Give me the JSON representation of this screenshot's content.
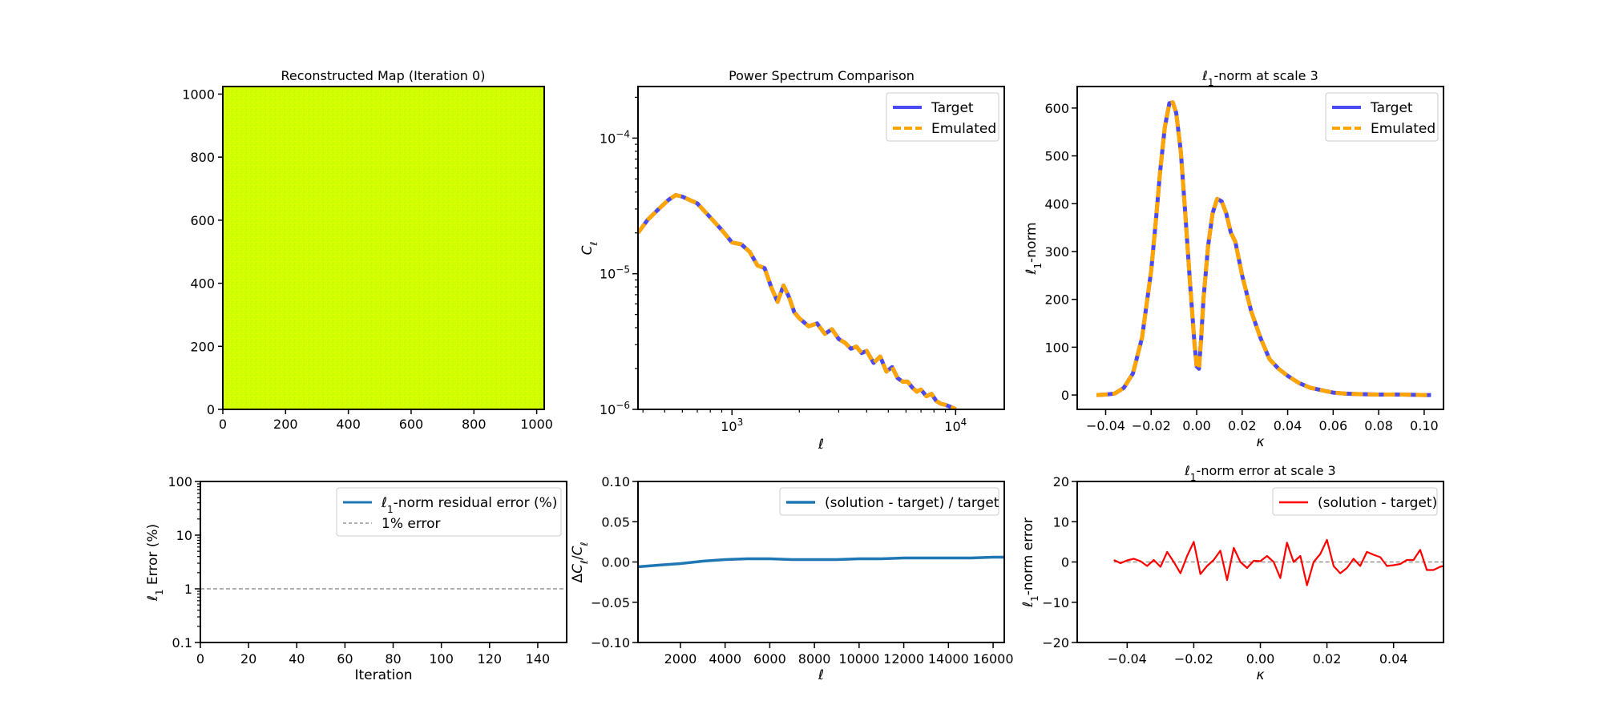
{
  "figure": {
    "map_panel": {
      "title": "Reconstructed Map (Iteration 0)",
      "x_ticks": [
        "0",
        "200",
        "400",
        "600",
        "800",
        "1000"
      ],
      "y_ticks": [
        "0",
        "200",
        "400",
        "600",
        "800",
        "1000"
      ],
      "colors": {
        "base": "#d2ff00",
        "speckle_a": "#b8f51c",
        "speckle_b": "#eeff06"
      }
    }
  },
  "chart_data": [
    {
      "type": "line",
      "title": "Power Spectrum Comparison",
      "xlabel": "ℓ",
      "ylabel": "C_ℓ",
      "xscale": "log",
      "yscale": "log",
      "xlim": [
        380,
        16500
      ],
      "ylim": [
        1e-06,
        0.00024
      ],
      "x_tick_labels": [
        {
          "v": 1000,
          "base": "10",
          "exp": "3"
        },
        {
          "v": 10000,
          "base": "10",
          "exp": "4"
        }
      ],
      "y_tick_labels": [
        {
          "v": 1e-06,
          "base": "10",
          "exp": "−6"
        },
        {
          "v": 1e-05,
          "base": "10",
          "exp": "−5"
        },
        {
          "v": 0.0001,
          "base": "10",
          "exp": "−4"
        }
      ],
      "legend": "upper right",
      "x": [
        380,
        420,
        470,
        520,
        560,
        600,
        700,
        800,
        900,
        1000,
        1100,
        1200,
        1300,
        1400,
        1500,
        1600,
        1700,
        1800,
        1900,
        2000,
        2200,
        2400,
        2600,
        2800,
        3000,
        3200,
        3400,
        3600,
        3800,
        4000,
        4300,
        4600,
        4900,
        5200,
        5500,
        5800,
        6100,
        6400,
        6700,
        7000,
        7400,
        7800,
        8200,
        8600,
        9000,
        9400,
        9800,
        10000
      ],
      "series": [
        {
          "name": "Target",
          "color": "#4a4af0",
          "style": "solid",
          "y": [
            2e-05,
            2.5e-05,
            3e-05,
            3.5e-05,
            3.8e-05,
            3.7e-05,
            3.3e-05,
            2.6e-05,
            2.1e-05,
            1.7e-05,
            1.65e-05,
            1.45e-05,
            1.15e-05,
            1.1e-05,
            7.9e-06,
            6.2e-06,
            8.2e-06,
            6.7e-06,
            5.2e-06,
            4.7e-06,
            4.1e-06,
            4.3e-06,
            3.6e-06,
            3.9e-06,
            3.3e-06,
            3.1e-06,
            2.8e-06,
            2.9e-06,
            2.6e-06,
            2.7e-06,
            2.2e-06,
            2.45e-06,
            1.9e-06,
            2.05e-06,
            1.7e-06,
            1.6e-06,
            1.6e-06,
            1.45e-06,
            1.35e-06,
            1.4e-06,
            1.25e-06,
            1.3e-06,
            1.15e-06,
            1.1e-06,
            1.08e-06,
            1.05e-06,
            1.02e-06,
            1e-06
          ]
        },
        {
          "name": "Emulated",
          "color": "#ffa500",
          "style": "dashed",
          "y": [
            2e-05,
            2.5e-05,
            3e-05,
            3.5e-05,
            3.8e-05,
            3.7e-05,
            3.3e-05,
            2.6e-05,
            2.1e-05,
            1.7e-05,
            1.65e-05,
            1.45e-05,
            1.15e-05,
            1.1e-05,
            7.9e-06,
            6.2e-06,
            8.2e-06,
            6.7e-06,
            5.2e-06,
            4.7e-06,
            4.1e-06,
            4.3e-06,
            3.6e-06,
            3.9e-06,
            3.3e-06,
            3.1e-06,
            2.8e-06,
            2.9e-06,
            2.6e-06,
            2.7e-06,
            2.2e-06,
            2.45e-06,
            1.9e-06,
            2.05e-06,
            1.7e-06,
            1.6e-06,
            1.6e-06,
            1.45e-06,
            1.35e-06,
            1.4e-06,
            1.25e-06,
            1.3e-06,
            1.15e-06,
            1.1e-06,
            1.08e-06,
            1.05e-06,
            1.02e-06,
            1e-06
          ]
        }
      ]
    },
    {
      "type": "line",
      "title": "ℓ1-norm at scale 3",
      "xlabel": "κ",
      "ylabel": "ℓ1-norm",
      "xlim": [
        -0.0525,
        0.1085
      ],
      "ylim": [
        -30,
        645
      ],
      "x_ticks": [
        -0.04,
        -0.02,
        0.0,
        0.02,
        0.04,
        0.06,
        0.08,
        0.1
      ],
      "x_tick_labels": [
        "−0.04",
        "−0.02",
        "0.00",
        "0.02",
        "0.04",
        "0.06",
        "0.08",
        "0.10"
      ],
      "y_ticks": [
        0,
        100,
        200,
        300,
        400,
        500,
        600
      ],
      "legend": "upper right",
      "x": [
        -0.044,
        -0.04,
        -0.036,
        -0.032,
        -0.028,
        -0.024,
        -0.02,
        -0.018,
        -0.016,
        -0.014,
        -0.012,
        -0.0105,
        -0.009,
        -0.007,
        -0.005,
        -0.003,
        -0.001,
        0.0,
        0.001,
        0.002,
        0.003,
        0.005,
        0.007,
        0.009,
        0.011,
        0.013,
        0.015,
        0.017,
        0.02,
        0.024,
        0.028,
        0.032,
        0.036,
        0.04,
        0.045,
        0.05,
        0.055,
        0.06,
        0.065,
        0.07,
        0.08,
        0.09,
        0.1,
        0.103
      ],
      "series": [
        {
          "name": "Target",
          "color": "#4a4af0",
          "style": "solid",
          "y": [
            0,
            1,
            3,
            15,
            45,
            120,
            260,
            360,
            470,
            560,
            610,
            612,
            590,
            510,
            380,
            240,
            110,
            60,
            55,
            120,
            200,
            310,
            380,
            410,
            405,
            380,
            340,
            320,
            250,
            175,
            120,
            75,
            55,
            40,
            25,
            15,
            10,
            5,
            3,
            2,
            1,
            1,
            0,
            0
          ]
        },
        {
          "name": "Emulated",
          "color": "#ffa500",
          "style": "dashed",
          "y": [
            0,
            1,
            3,
            15,
            45,
            120,
            260,
            360,
            470,
            560,
            610,
            612,
            590,
            510,
            380,
            240,
            110,
            60,
            55,
            120,
            200,
            310,
            380,
            410,
            405,
            380,
            340,
            320,
            250,
            175,
            120,
            75,
            55,
            40,
            25,
            15,
            10,
            5,
            3,
            2,
            1,
            1,
            0,
            0
          ]
        }
      ]
    },
    {
      "type": "line",
      "xlabel": "Iteration",
      "ylabel": "ℓ1 Error (%)",
      "yscale": "log",
      "xlim": [
        0,
        152
      ],
      "ylim": [
        0.1,
        100
      ],
      "x_ticks": [
        0,
        20,
        40,
        60,
        80,
        100,
        120,
        140
      ],
      "y_ticks": [
        0.1,
        1,
        10,
        100
      ],
      "y_tick_labels": [
        "0.1",
        "1",
        "10",
        "100"
      ],
      "legend": "upper right",
      "series": [
        {
          "name": "ℓ1-norm residual error (%)",
          "color": "#1f77b4",
          "style": "solid",
          "x": [],
          "y": []
        },
        {
          "name": "1% error",
          "color": "#808080",
          "style": "dashed",
          "value": 1
        }
      ]
    },
    {
      "type": "line",
      "xlabel": "ℓ",
      "ylabel": "ΔC_ℓ/C_ℓ",
      "xlim": [
        100,
        16500
      ],
      "ylim": [
        -0.1,
        0.1
      ],
      "x_ticks": [
        2000,
        4000,
        6000,
        8000,
        10000,
        12000,
        14000,
        16000
      ],
      "y_ticks": [
        -0.1,
        -0.05,
        0.0,
        0.05,
        0.1
      ],
      "y_tick_labels": [
        "−0.10",
        "−0.05",
        "0.00",
        "0.05",
        "0.10"
      ],
      "legend": "upper right",
      "series": [
        {
          "name": "(solution - target) / target",
          "color": "#1f77b4",
          "style": "solid",
          "x": [
            100,
            1000,
            2000,
            3000,
            4000,
            5000,
            6000,
            7000,
            8000,
            9000,
            10000,
            11000,
            12000,
            13000,
            14000,
            15000,
            16000,
            16500
          ],
          "y": [
            -0.006,
            -0.004,
            -0.002,
            0.001,
            0.003,
            0.004,
            0.004,
            0.003,
            0.003,
            0.003,
            0.004,
            0.004,
            0.005,
            0.005,
            0.005,
            0.005,
            0.006,
            0.006
          ]
        }
      ]
    },
    {
      "type": "line",
      "title": "ℓ1-norm error at scale 3",
      "xlabel": "κ",
      "ylabel": "ℓ1-norm error",
      "xlim": [
        -0.055,
        0.055
      ],
      "ylim": [
        -20,
        20
      ],
      "x_ticks": [
        -0.04,
        -0.02,
        0.0,
        0.02,
        0.04
      ],
      "x_tick_labels": [
        "−0.04",
        "−0.02",
        "0.00",
        "0.02",
        "0.04"
      ],
      "y_ticks": [
        -20,
        -10,
        0,
        10,
        20
      ],
      "y_tick_labels": [
        "−20",
        "−10",
        "0",
        "10",
        "20"
      ],
      "legend": "upper right",
      "zero_line": {
        "value": 0,
        "color": "#808080",
        "style": "dashed"
      },
      "series": [
        {
          "name": "(solution - target)",
          "color": "#ff0000",
          "style": "solid",
          "x": [
            -0.044,
            -0.042,
            -0.04,
            -0.038,
            -0.036,
            -0.034,
            -0.032,
            -0.03,
            -0.028,
            -0.026,
            -0.024,
            -0.022,
            -0.02,
            -0.018,
            -0.016,
            -0.014,
            -0.012,
            -0.01,
            -0.008,
            -0.006,
            -0.004,
            -0.002,
            0.0,
            0.002,
            0.004,
            0.006,
            0.008,
            0.01,
            0.012,
            0.014,
            0.016,
            0.018,
            0.02,
            0.022,
            0.024,
            0.026,
            0.028,
            0.03,
            0.032,
            0.034,
            0.036,
            0.038,
            0.04,
            0.042,
            0.044,
            0.046,
            0.048,
            0.05,
            0.052,
            0.054,
            0.055
          ],
          "y": [
            0.5,
            -0.3,
            0.4,
            0.8,
            0.2,
            -1.0,
            0.5,
            -1.2,
            2.5,
            0.0,
            -2.8,
            1.5,
            5.0,
            -3.0,
            -1.0,
            0.5,
            2.8,
            -4.5,
            3.5,
            0.0,
            -1.5,
            0.3,
            0.2,
            1.5,
            0.0,
            -4.0,
            4.8,
            0.0,
            1.5,
            -5.8,
            0.0,
            2.0,
            5.5,
            -1.0,
            -2.8,
            -1.5,
            0.8,
            -1.0,
            2.5,
            1.8,
            1.2,
            -1.0,
            -0.8,
            -0.5,
            0.5,
            0.5,
            3.0,
            -2.0,
            -2.0,
            -1.2,
            -1.0
          ]
        }
      ]
    }
  ]
}
